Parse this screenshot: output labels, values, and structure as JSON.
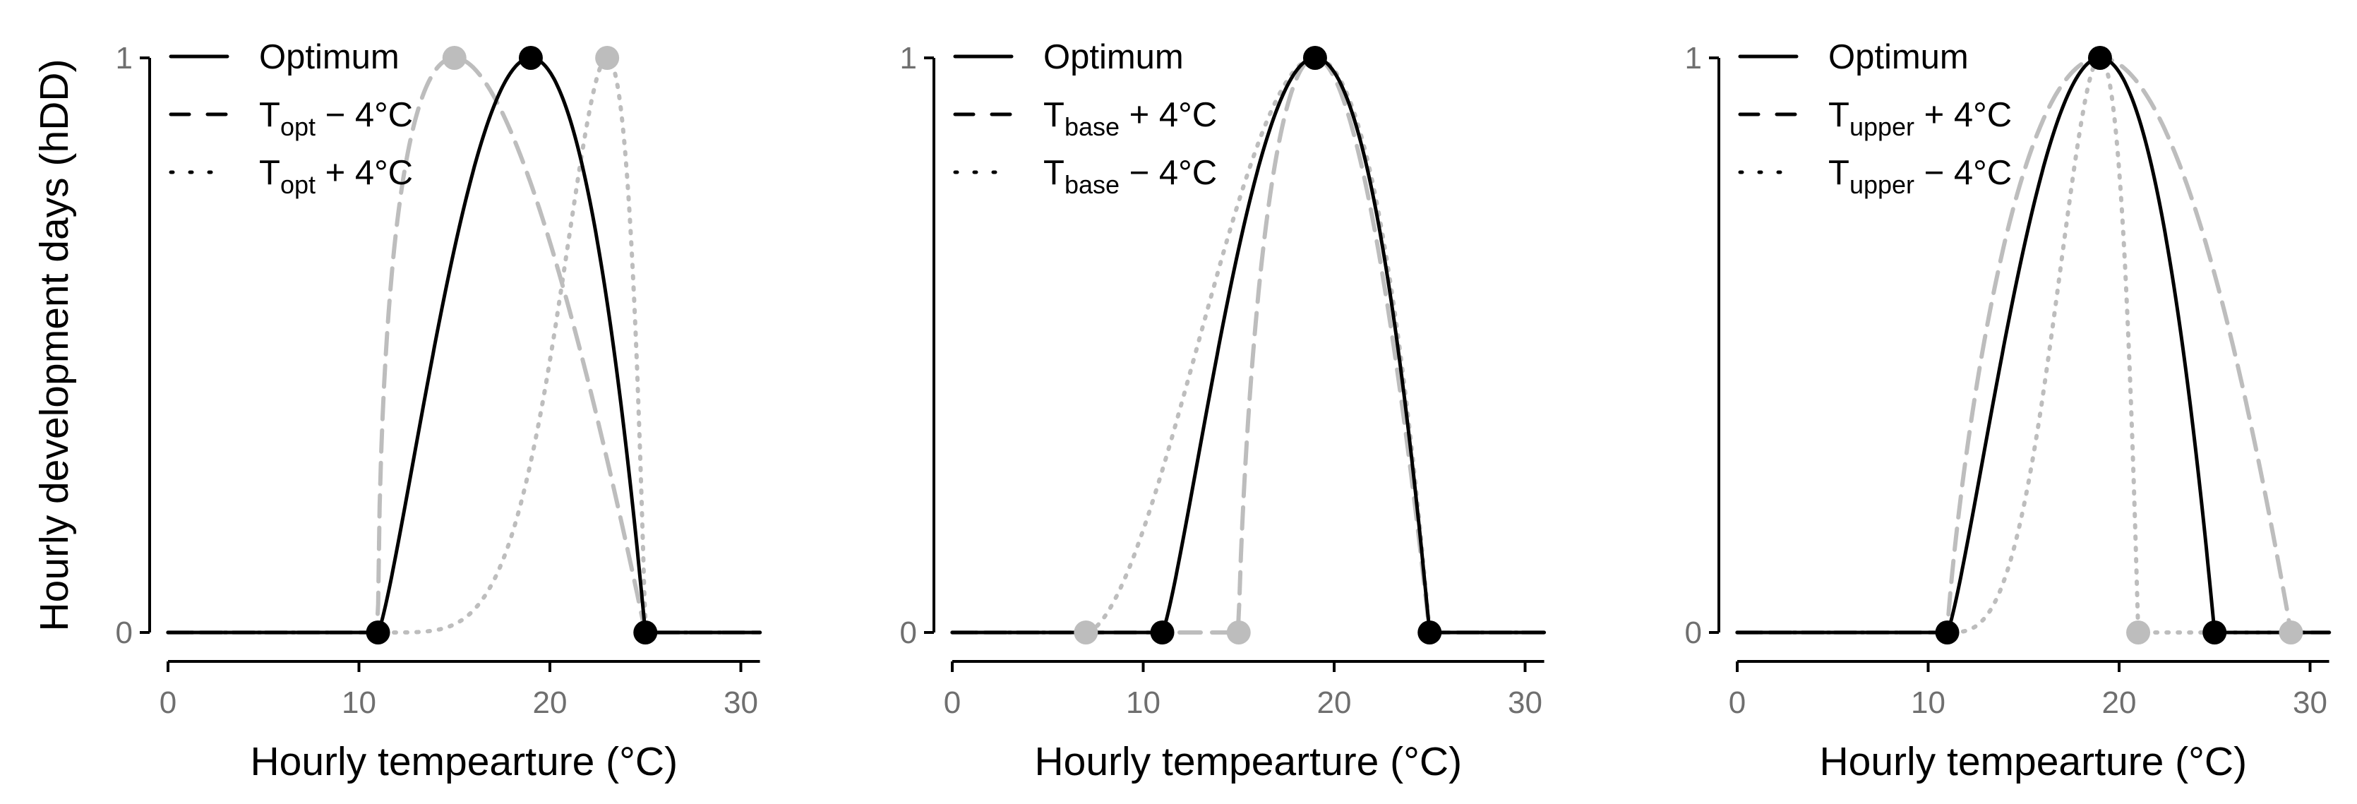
{
  "chart_data": [
    {
      "type": "line",
      "panel": "left",
      "xlabel": "Hourly tempearture (°C)",
      "ylabel": "Hourly development days (hDD)",
      "xlim": [
        0,
        31
      ],
      "ylim": [
        0,
        1
      ],
      "xticks": [
        "0",
        "10",
        "20",
        "30"
      ],
      "yticks": [
        "0",
        "1"
      ],
      "grid": false,
      "legend_position": "top-left",
      "legend": [
        {
          "label": "Optimum",
          "base": "Optimum",
          "sub": "",
          "rest": "",
          "style": "solid",
          "color": "#000000"
        },
        {
          "label": "T_opt − 4°C",
          "base": "T",
          "sub": "opt",
          "rest": " − 4°C",
          "style": "dashed",
          "color": "#bdbdbd"
        },
        {
          "label": "T_opt + 4°C",
          "base": "T",
          "sub": "opt",
          "rest": " + 4°C",
          "style": "dotted",
          "color": "#bdbdbd"
        }
      ],
      "series": [
        {
          "name": "Optimum",
          "t_base": 11,
          "t_opt": 19,
          "t_upper": 25,
          "style": "solid",
          "color": "#000000"
        },
        {
          "name": "T_opt − 4°C",
          "t_base": 11,
          "t_opt": 15,
          "t_upper": 25,
          "style": "dashed",
          "color": "#bdbdbd"
        },
        {
          "name": "T_opt + 4°C",
          "t_base": 11,
          "t_opt": 23,
          "t_upper": 25,
          "style": "dotted",
          "color": "#bdbdbd"
        }
      ],
      "points": [
        {
          "x": 11,
          "y": 0,
          "color": "#000000"
        },
        {
          "x": 19,
          "y": 1,
          "color": "#000000"
        },
        {
          "x": 25,
          "y": 0,
          "color": "#000000"
        },
        {
          "x": 15,
          "y": 1,
          "color": "#bdbdbd"
        },
        {
          "x": 23,
          "y": 1,
          "color": "#bdbdbd"
        }
      ]
    },
    {
      "type": "line",
      "panel": "middle",
      "xlabel": "Hourly tempearture (°C)",
      "ylabel": "",
      "xlim": [
        0,
        31
      ],
      "ylim": [
        0,
        1
      ],
      "xticks": [
        "0",
        "10",
        "20",
        "30"
      ],
      "yticks": [
        "0",
        "1"
      ],
      "grid": false,
      "legend_position": "top-left",
      "legend": [
        {
          "label": "Optimum",
          "base": "Optimum",
          "sub": "",
          "rest": "",
          "style": "solid",
          "color": "#000000"
        },
        {
          "label": "T_base + 4°C",
          "base": "T",
          "sub": "base",
          "rest": " + 4°C",
          "style": "dashed",
          "color": "#bdbdbd"
        },
        {
          "label": "T_base − 4°C",
          "base": "T",
          "sub": "base",
          "rest": " − 4°C",
          "style": "dotted",
          "color": "#bdbdbd"
        }
      ],
      "series": [
        {
          "name": "Optimum",
          "t_base": 11,
          "t_opt": 19,
          "t_upper": 25,
          "style": "solid",
          "color": "#000000"
        },
        {
          "name": "T_base + 4°C",
          "t_base": 15,
          "t_opt": 19,
          "t_upper": 25,
          "style": "dashed",
          "color": "#bdbdbd"
        },
        {
          "name": "T_base − 4°C",
          "t_base": 7,
          "t_opt": 19,
          "t_upper": 25,
          "style": "dotted",
          "color": "#bdbdbd"
        }
      ],
      "points": [
        {
          "x": 11,
          "y": 0,
          "color": "#000000"
        },
        {
          "x": 19,
          "y": 1,
          "color": "#000000"
        },
        {
          "x": 25,
          "y": 0,
          "color": "#000000"
        },
        {
          "x": 7,
          "y": 0,
          "color": "#bdbdbd"
        },
        {
          "x": 15,
          "y": 0,
          "color": "#bdbdbd"
        }
      ]
    },
    {
      "type": "line",
      "panel": "right",
      "xlabel": "Hourly tempearture (°C)",
      "ylabel": "",
      "xlim": [
        0,
        31
      ],
      "ylim": [
        0,
        1
      ],
      "xticks": [
        "0",
        "10",
        "20",
        "30"
      ],
      "yticks": [
        "0",
        "1"
      ],
      "grid": false,
      "legend_position": "top-left",
      "legend": [
        {
          "label": "Optimum",
          "base": "Optimum",
          "sub": "",
          "rest": "",
          "style": "solid",
          "color": "#000000"
        },
        {
          "label": "T_upper + 4°C",
          "base": "T",
          "sub": "upper",
          "rest": " + 4°C",
          "style": "dashed",
          "color": "#bdbdbd"
        },
        {
          "label": "T_upper − 4°C",
          "base": "T",
          "sub": "upper",
          "rest": " − 4°C",
          "style": "dotted",
          "color": "#bdbdbd"
        }
      ],
      "series": [
        {
          "name": "Optimum",
          "t_base": 11,
          "t_opt": 19,
          "t_upper": 25,
          "style": "solid",
          "color": "#000000"
        },
        {
          "name": "T_upper + 4°C",
          "t_base": 11,
          "t_opt": 19,
          "t_upper": 29,
          "style": "dashed",
          "color": "#bdbdbd"
        },
        {
          "name": "T_upper − 4°C",
          "t_base": 11,
          "t_opt": 19,
          "t_upper": 21,
          "style": "dotted",
          "color": "#bdbdbd"
        }
      ],
      "points": [
        {
          "x": 11,
          "y": 0,
          "color": "#000000"
        },
        {
          "x": 19,
          "y": 1,
          "color": "#000000"
        },
        {
          "x": 25,
          "y": 0,
          "color": "#000000"
        },
        {
          "x": 21,
          "y": 0,
          "color": "#bdbdbd"
        },
        {
          "x": 29,
          "y": 0,
          "color": "#bdbdbd"
        }
      ]
    }
  ]
}
